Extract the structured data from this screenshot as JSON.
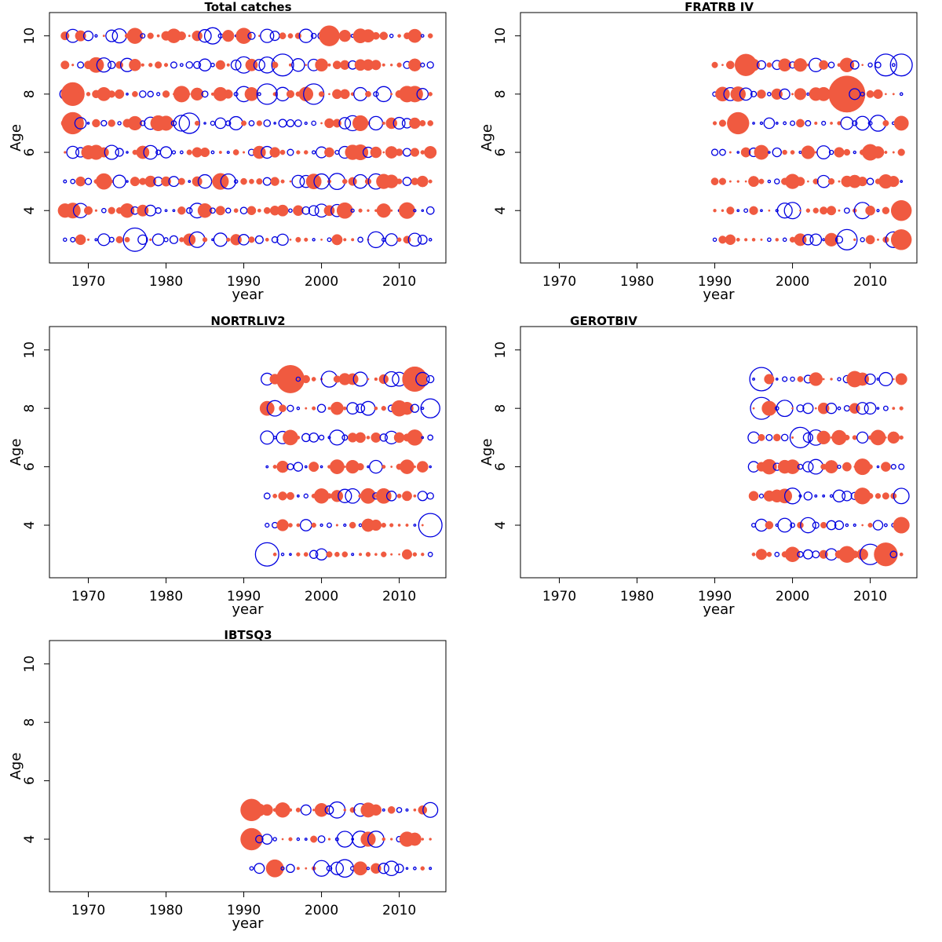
{
  "colors": {
    "positive": "#F05A40",
    "negative": "#0000E0"
  },
  "chart_data": [
    {
      "type": "scatter",
      "title": "Total catches",
      "xlabel": "year",
      "ylabel": "Age",
      "xlim": [
        1965,
        2016
      ],
      "ylim": [
        2.2,
        10.8
      ],
      "xticks": [
        "1970",
        "1980",
        "1990",
        "2000",
        "2010"
      ],
      "yticks": [
        "4",
        "6",
        "8",
        "10"
      ],
      "years": [
        1967,
        2014
      ],
      "ages": [
        3,
        4,
        5,
        6,
        7,
        8,
        9,
        10
      ],
      "pattern": "dense residual bubbles across all ages 3-10, mixed positive (filled red) and negative (open blue)",
      "seed": 11,
      "big": [
        {
          "x": 1968,
          "y": 7,
          "s": 0.75,
          "neg": false
        },
        {
          "x": 1968,
          "y": 8,
          "s": 0.8,
          "neg": false
        },
        {
          "x": 1976,
          "y": 3,
          "s": 0.8,
          "neg": true
        },
        {
          "x": 1983,
          "y": 7,
          "s": 0.7,
          "neg": true
        },
        {
          "x": 1993,
          "y": 8,
          "s": 0.7,
          "neg": true
        },
        {
          "x": 1999,
          "y": 8,
          "s": 0.7,
          "neg": true
        },
        {
          "x": 2001,
          "y": 10,
          "s": 0.7,
          "neg": false
        },
        {
          "x": 1995,
          "y": 9,
          "s": 0.75,
          "neg": true
        }
      ]
    },
    {
      "type": "scatter",
      "title": "FRATRB IV",
      "xlabel": "year",
      "ylabel": "Age",
      "xlim": [
        1965,
        2016
      ],
      "ylim": [
        2.2,
        10.8
      ],
      "xticks": [
        "1970",
        "1980",
        "1990",
        "2000",
        "2010"
      ],
      "yticks": [
        "4",
        "6",
        "8",
        "10"
      ],
      "years": [
        1990,
        2014
      ],
      "ages": [
        3,
        4,
        5,
        6,
        7,
        8,
        9
      ],
      "pattern": "bubbles from 1990 to 2014 for ages 3-9",
      "seed": 23,
      "big": [
        {
          "x": 2007,
          "y": 8,
          "s": 1.25,
          "neg": false
        },
        {
          "x": 2012,
          "y": 9,
          "s": 0.75,
          "neg": true
        },
        {
          "x": 2014,
          "y": 9,
          "s": 0.75,
          "neg": true
        },
        {
          "x": 2007,
          "y": 3,
          "s": 0.7,
          "neg": true
        },
        {
          "x": 1993,
          "y": 7,
          "s": 0.75,
          "neg": false
        },
        {
          "x": 1994,
          "y": 9,
          "s": 0.75,
          "neg": false
        },
        {
          "x": 2014,
          "y": 4,
          "s": 0.7,
          "neg": false
        },
        {
          "x": 2014,
          "y": 3,
          "s": 0.7,
          "neg": false
        }
      ]
    },
    {
      "type": "scatter",
      "title": "NORTRLIV2",
      "xlabel": "year",
      "ylabel": "Age",
      "xlim": [
        1965,
        2016
      ],
      "ylim": [
        2.2,
        10.8
      ],
      "xticks": [
        "1970",
        "1980",
        "1990",
        "2000",
        "2010"
      ],
      "yticks": [
        "4",
        "6",
        "8",
        "10"
      ],
      "years": [
        1993,
        2014
      ],
      "ages": [
        3,
        4,
        5,
        6,
        7,
        8,
        9
      ],
      "pattern": "bubbles from 1993 to 2014 for ages 3-9",
      "seed": 37,
      "big": [
        {
          "x": 1996,
          "y": 9,
          "s": 0.95,
          "neg": false
        },
        {
          "x": 2012,
          "y": 9,
          "s": 0.85,
          "neg": false
        },
        {
          "x": 1993,
          "y": 3,
          "s": 0.8,
          "neg": true
        },
        {
          "x": 2014,
          "y": 4,
          "s": 0.8,
          "neg": true
        },
        {
          "x": 2014,
          "y": 8,
          "s": 0.65,
          "neg": true
        }
      ]
    },
    {
      "type": "scatter",
      "title": "GEROTBIV",
      "xlabel": "year",
      "ylabel": "Age",
      "xlim": [
        1965,
        2016
      ],
      "ylim": [
        2.2,
        10.8
      ],
      "xticks": [
        "1970",
        "1980",
        "1990",
        "2000",
        "2010"
      ],
      "yticks": [
        "4",
        "6",
        "8",
        "10"
      ],
      "years": [
        1995,
        2014
      ],
      "ages": [
        3,
        4,
        5,
        6,
        7,
        8,
        9
      ],
      "pattern": "bubbles from 1995 to 2014 for ages 3-9",
      "seed": 51,
      "big": [
        {
          "x": 1996,
          "y": 9,
          "s": 0.8,
          "neg": true
        },
        {
          "x": 1996,
          "y": 8,
          "s": 0.75,
          "neg": true
        },
        {
          "x": 2001,
          "y": 7,
          "s": 0.7,
          "neg": true
        },
        {
          "x": 2012,
          "y": 3,
          "s": 0.8,
          "neg": false
        },
        {
          "x": 2010,
          "y": 3,
          "s": 0.7,
          "neg": true
        }
      ]
    },
    {
      "type": "scatter",
      "title": "IBTSQ3",
      "xlabel": "year",
      "ylabel": "Age",
      "xlim": [
        1965,
        2016
      ],
      "ylim": [
        2.2,
        10.8
      ],
      "xticks": [
        "1970",
        "1980",
        "1990",
        "2000",
        "2010"
      ],
      "yticks": [
        "4",
        "6",
        "8",
        "10"
      ],
      "years": [
        1991,
        2014
      ],
      "ages": [
        3,
        4,
        5
      ],
      "pattern": "bubbles from 1991 to 2014 for ages 3-5",
      "seed": 67,
      "big": [
        {
          "x": 1991,
          "y": 5,
          "s": 0.75,
          "neg": false
        },
        {
          "x": 1991,
          "y": 4,
          "s": 0.75,
          "neg": false
        },
        {
          "x": 1994,
          "y": 3,
          "s": 0.6,
          "neg": false
        },
        {
          "x": 2003,
          "y": 3,
          "s": 0.6,
          "neg": true
        },
        {
          "x": 2007,
          "y": 4,
          "s": 0.55,
          "neg": true
        }
      ]
    }
  ]
}
